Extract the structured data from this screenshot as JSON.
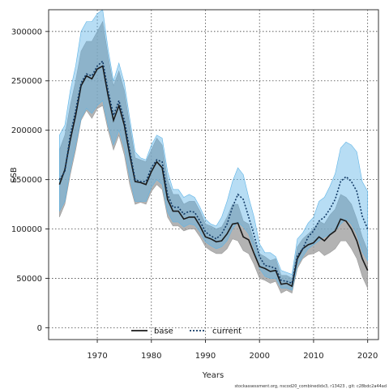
{
  "chart_data": {
    "type": "line",
    "xlabel": "Years",
    "ylabel": "SSB",
    "xlim": [
      1961,
      2022
    ],
    "ylim": [
      -12000,
      322000
    ],
    "x_ticks": [
      1970,
      1980,
      1990,
      2000,
      2010,
      2020
    ],
    "y_ticks": [
      0,
      50000,
      100000,
      150000,
      200000,
      250000,
      300000
    ],
    "grid": true,
    "legend_position": "bottom-center",
    "footnote": "stockassessment.org, nscod20_combinedidx3, r13423 , git: c28bdc2a44ad",
    "x": [
      1963,
      1964,
      1965,
      1966,
      1967,
      1968,
      1969,
      1970,
      1971,
      1972,
      1973,
      1974,
      1975,
      1976,
      1977,
      1978,
      1979,
      1980,
      1981,
      1982,
      1983,
      1984,
      1985,
      1986,
      1987,
      1988,
      1989,
      1990,
      1991,
      1992,
      1993,
      1994,
      1995,
      1996,
      1997,
      1998,
      1999,
      2000,
      2001,
      2002,
      2003,
      2004,
      2005,
      2006,
      2007,
      2008,
      2009,
      2010,
      2011,
      2012,
      2013,
      2014,
      2015,
      2016,
      2017,
      2018,
      2019,
      2020
    ],
    "series": [
      {
        "name": "base",
        "color": "#1a1a1a",
        "band_color": "#9a9a9a",
        "line_style": "solid",
        "values": [
          145000,
          160000,
          190000,
          215000,
          245000,
          255000,
          252000,
          262000,
          265000,
          235000,
          210000,
          225000,
          205000,
          175000,
          148000,
          147000,
          145000,
          158000,
          168000,
          162000,
          130000,
          118000,
          118000,
          110000,
          112000,
          112000,
          103000,
          92000,
          90000,
          87000,
          88000,
          95000,
          105000,
          106000,
          92000,
          89000,
          75000,
          62000,
          60000,
          57000,
          58000,
          44000,
          45000,
          42000,
          70000,
          80000,
          84000,
          86000,
          92000,
          88000,
          94000,
          98000,
          110000,
          108000,
          100000,
          88000,
          70000,
          58000
        ],
        "lower": [
          112000,
          125000,
          155000,
          180000,
          210000,
          220000,
          212000,
          222000,
          225000,
          200000,
          180000,
          195000,
          175000,
          145000,
          125000,
          127000,
          125000,
          138000,
          145000,
          140000,
          112000,
          103000,
          103000,
          98000,
          100000,
          100000,
          92000,
          82000,
          78000,
          75000,
          75000,
          80000,
          90000,
          88000,
          78000,
          75000,
          64000,
          50000,
          48000,
          45000,
          47000,
          35000,
          38000,
          35000,
          60000,
          70000,
          74000,
          75000,
          78000,
          73000,
          76000,
          80000,
          88000,
          88000,
          80000,
          70000,
          52000,
          40000
        ],
        "upper": [
          180000,
          195000,
          225000,
          250000,
          280000,
          290000,
          290000,
          300000,
          310000,
          275000,
          245000,
          260000,
          240000,
          205000,
          172000,
          170000,
          168000,
          180000,
          192000,
          185000,
          150000,
          135000,
          135000,
          125000,
          128000,
          128000,
          118000,
          105000,
          103000,
          100000,
          102000,
          112000,
          125000,
          125000,
          108000,
          105000,
          88000,
          75000,
          72000,
          68000,
          70000,
          53000,
          53000,
          50000,
          82000,
          90000,
          95000,
          100000,
          108000,
          105000,
          114000,
          120000,
          135000,
          132000,
          125000,
          110000,
          92000,
          78000
        ]
      },
      {
        "name": "current",
        "color": "#123a66",
        "band_color": "#5fb4e6",
        "line_style": "dotted",
        "values": [
          150000,
          158000,
          195000,
          220000,
          248000,
          257000,
          255000,
          265000,
          270000,
          240000,
          215000,
          230000,
          210000,
          180000,
          150000,
          148000,
          148000,
          162000,
          170000,
          168000,
          135000,
          122000,
          122000,
          115000,
          118000,
          117000,
          108000,
          97000,
          93000,
          90000,
          95000,
          105000,
          122000,
          135000,
          130000,
          112000,
          94000,
          72000,
          63000,
          62000,
          60000,
          48000,
          47000,
          45000,
          73000,
          80000,
          92000,
          98000,
          108000,
          112000,
          120000,
          130000,
          148000,
          153000,
          148000,
          138000,
          113000,
          100000
        ],
        "lower": [
          118000,
          128000,
          160000,
          185000,
          212000,
          222000,
          217000,
          225000,
          230000,
          205000,
          185000,
          200000,
          182000,
          152000,
          128000,
          128000,
          128000,
          142000,
          150000,
          145000,
          117000,
          107000,
          107000,
          102000,
          105000,
          104000,
          97000,
          87000,
          83000,
          80000,
          82000,
          88000,
          100000,
          107000,
          102000,
          95000,
          80000,
          60000,
          52000,
          50000,
          50000,
          40000,
          40000,
          38000,
          63000,
          72000,
          80000,
          84000,
          88000,
          92000,
          94000,
          98000,
          105000,
          110000,
          105000,
          95000,
          77000,
          68000
        ],
        "upper": [
          195000,
          205000,
          240000,
          265000,
          300000,
          310000,
          310000,
          318000,
          322000,
          282000,
          250000,
          268000,
          248000,
          212000,
          178000,
          172000,
          170000,
          185000,
          195000,
          192000,
          158000,
          140000,
          140000,
          132000,
          135000,
          132000,
          122000,
          110000,
          105000,
          103000,
          112000,
          128000,
          148000,
          162000,
          155000,
          132000,
          112000,
          85000,
          76000,
          76000,
          72000,
          58000,
          56000,
          54000,
          90000,
          96000,
          106000,
          112000,
          128000,
          132000,
          143000,
          156000,
          182000,
          188000,
          185000,
          178000,
          148000,
          138000
        ]
      }
    ]
  }
}
